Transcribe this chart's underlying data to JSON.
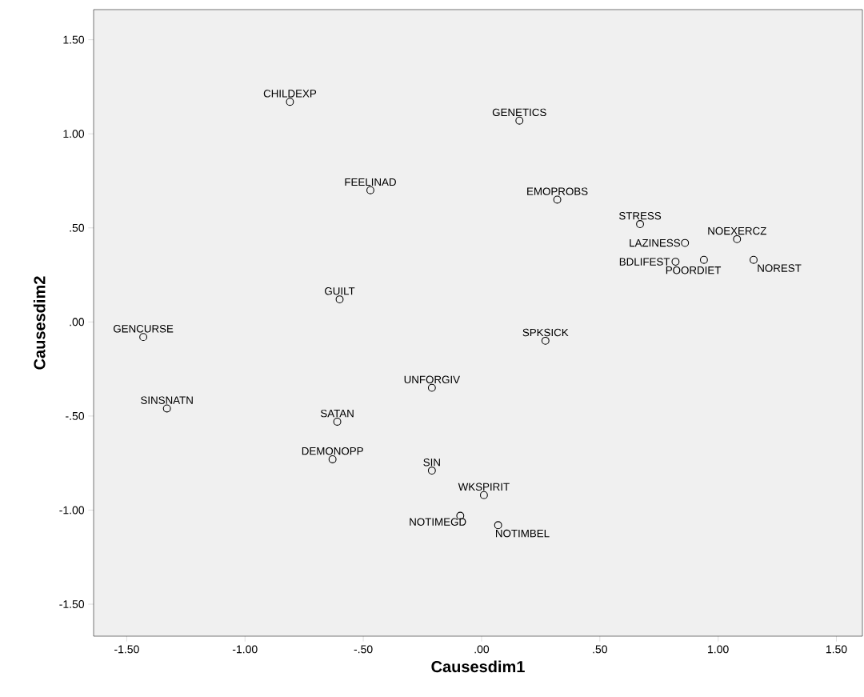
{
  "chart_data": {
    "type": "scatter",
    "xlabel": "Causesdim1",
    "ylabel": "Causesdim2",
    "x": [
      -0.81,
      0.16,
      -0.47,
      0.32,
      0.67,
      1.08,
      0.86,
      0.82,
      0.94,
      1.15,
      -0.6,
      -1.43,
      0.27,
      -0.21,
      -1.33,
      -0.61,
      -0.63,
      -0.21,
      0.01,
      -0.09,
      0.07
    ],
    "values": [
      1.17,
      1.07,
      0.7,
      0.65,
      0.52,
      0.44,
      0.42,
      0.32,
      0.33,
      0.33,
      0.12,
      -0.08,
      -0.1,
      -0.35,
      -0.46,
      -0.53,
      -0.73,
      -0.79,
      -0.92,
      -1.03,
      -1.08
    ],
    "color": "#000000",
    "marker": "circle",
    "grid": false,
    "xlim": [
      -1.64,
      1.61
    ],
    "ylim": [
      -1.67,
      1.66
    ],
    "xticks": [
      {
        "value": -1.5,
        "label": "-1.50"
      },
      {
        "value": -1,
        "label": "-1.00"
      },
      {
        "value": -0.5,
        "label": "-.50"
      },
      {
        "value": 0,
        "label": ".00"
      },
      {
        "value": 0.5,
        "label": ".50"
      },
      {
        "value": 1,
        "label": "1.00"
      },
      {
        "value": 1.5,
        "label": "1.50"
      }
    ],
    "yticks": [
      {
        "value": -1.5,
        "label": "-1.50"
      },
      {
        "value": -1,
        "label": "-1.00"
      },
      {
        "value": -0.5,
        "label": "-.50"
      },
      {
        "value": 0,
        "label": ".00"
      },
      {
        "value": 0.5,
        "label": ".50"
      },
      {
        "value": 1,
        "label": "1.00"
      },
      {
        "value": 1.5,
        "label": "1.50"
      }
    ],
    "annotations": [
      {
        "text": "CHILDEXP",
        "x": -0.81,
        "y": 1.17
      },
      {
        "text": "GENETICS",
        "x": 0.16,
        "y": 1.07
      },
      {
        "text": "FEELINAD",
        "x": -0.47,
        "y": 0.7
      },
      {
        "text": "EMOPROBS",
        "x": 0.32,
        "y": 0.65
      },
      {
        "text": "STRESS",
        "x": 0.67,
        "y": 0.52
      },
      {
        "text": "NOEXERCZ",
        "x": 1.08,
        "y": 0.44
      },
      {
        "text": "LAZINESS",
        "x": 0.86,
        "y": 0.42
      },
      {
        "text": "BDLIFEST",
        "x": 0.82,
        "y": 0.32
      },
      {
        "text": "POORDIET",
        "x": 0.94,
        "y": 0.33
      },
      {
        "text": "NOREST",
        "x": 1.15,
        "y": 0.33
      },
      {
        "text": "GUILT",
        "x": -0.6,
        "y": 0.12
      },
      {
        "text": "GENCURSE",
        "x": -1.43,
        "y": -0.08
      },
      {
        "text": "SPKSICK",
        "x": 0.27,
        "y": -0.1
      },
      {
        "text": "UNFORGIV",
        "x": -0.21,
        "y": -0.35
      },
      {
        "text": "SINSNATN",
        "x": -1.33,
        "y": -0.46
      },
      {
        "text": "SATAN",
        "x": -0.61,
        "y": -0.53
      },
      {
        "text": "DEMONOPP",
        "x": -0.63,
        "y": -0.73
      },
      {
        "text": "SIN",
        "x": -0.21,
        "y": -0.79
      },
      {
        "text": "WKSPIRIT",
        "x": 0.01,
        "y": -0.92
      },
      {
        "text": "NOTIMEGD",
        "x": -0.09,
        "y": -1.03
      },
      {
        "text": "NOTIMBEL",
        "x": 0.07,
        "y": -1.08
      }
    ]
  }
}
